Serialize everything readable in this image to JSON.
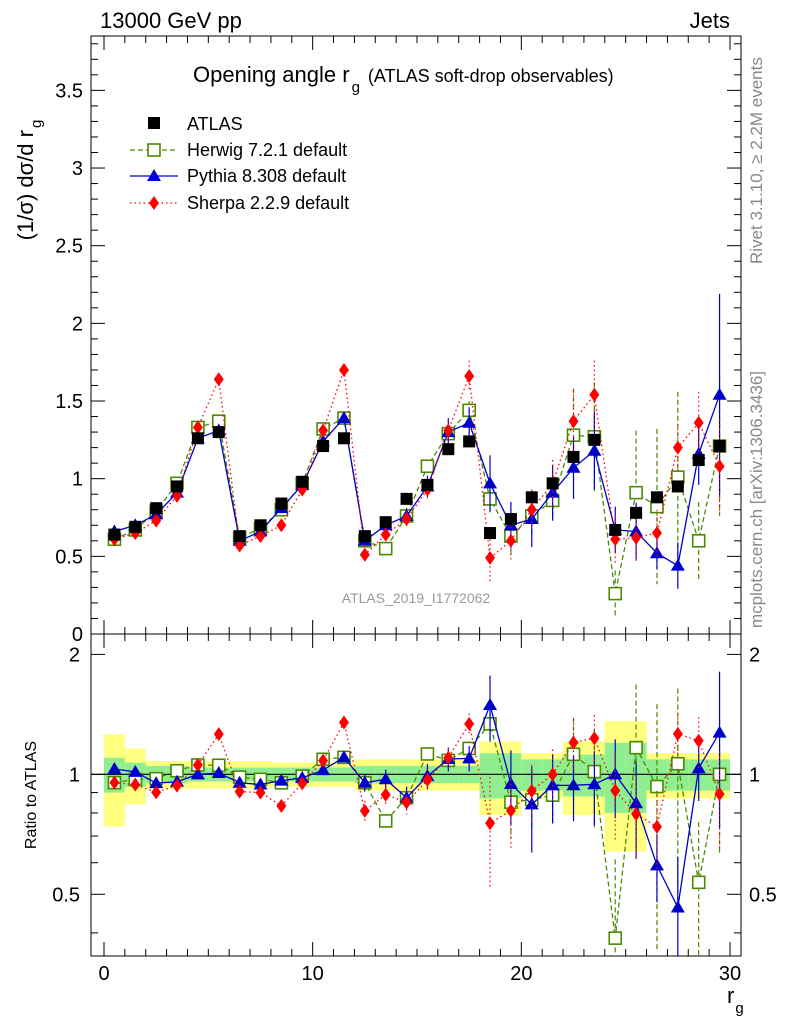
{
  "header": {
    "left": "13000 GeV pp",
    "right": "Jets"
  },
  "chart_data": {
    "type": "scatter",
    "title_main": "Opening angle r",
    "title_sub": "g",
    "title_suffix": "(ATLAS soft-drop observables)",
    "ylabel_main": "(1/σ) dσ/d r",
    "ylabel_sub": "g",
    "xlabel_main": "r",
    "xlabel_sub": "g",
    "ratio_ylabel": "Ratio to ATLAS",
    "analysis_label": "ATLAS_2019_I1772062",
    "side_label_top": "Rivet 3.1.10, ≥ 2.2M events",
    "side_label_bottom": "mcplots.cern.ch [arXiv:1306.3436]",
    "xlim": [
      0,
      30
    ],
    "ylim": [
      0,
      3.85
    ],
    "ratio_ylim": [
      0.35,
      2.25
    ],
    "x_ticks": [
      "0",
      "10",
      "20",
      "30"
    ],
    "y_ticks": [
      "0",
      "0.5",
      "1",
      "1.5",
      "2",
      "2.5",
      "3",
      "3.5"
    ],
    "ratio_y_ticks": [
      "0.5",
      "1",
      "2"
    ],
    "x": [
      0.5,
      1.5,
      2.5,
      3.5,
      4.5,
      5.5,
      6.5,
      7.5,
      8.5,
      9.5,
      10.5,
      11.5,
      12.5,
      13.5,
      14.5,
      15.5,
      16.5,
      17.5,
      18.5,
      19.5,
      20.5,
      21.5,
      22.5,
      23.5,
      24.5,
      25.5,
      26.5,
      27.5,
      28.5,
      29.5
    ],
    "series": [
      {
        "name": "ATLAS",
        "color": "#000000",
        "marker": "square-filled",
        "values": [
          0.64,
          0.69,
          0.81,
          0.95,
          1.26,
          1.3,
          0.63,
          0.7,
          0.84,
          0.98,
          1.21,
          1.26,
          0.63,
          0.72,
          0.87,
          0.96,
          1.19,
          1.24,
          0.65,
          0.74,
          0.88,
          0.97,
          1.14,
          1.25,
          0.67,
          0.78,
          0.88,
          0.95,
          1.12,
          1.21
        ]
      },
      {
        "name": "Herwig 7.2.1 default",
        "color": "#4a8a00",
        "marker": "square-open",
        "line": "dashed",
        "values": [
          0.61,
          0.67,
          0.79,
          0.97,
          1.33,
          1.37,
          0.62,
          0.68,
          0.8,
          0.97,
          1.32,
          1.39,
          0.6,
          0.55,
          0.76,
          1.08,
          1.29,
          1.44,
          0.87,
          0.63,
          0.76,
          0.86,
          1.28,
          1.27,
          0.26,
          0.91,
          0.82,
          1.01,
          0.6,
          1.21
        ],
        "err": [
          0.01,
          0.01,
          0.01,
          0.01,
          0.01,
          0.01,
          0.01,
          0.01,
          0.01,
          0.01,
          0.01,
          0.02,
          0.02,
          0.02,
          0.03,
          0.04,
          0.05,
          0.06,
          0.1,
          0.12,
          0.12,
          0.13,
          0.3,
          0.35,
          0.15,
          0.4,
          0.5,
          0.55,
          0.25,
          0.45
        ]
      },
      {
        "name": "Pythia 8.308 default",
        "color": "#0000cc",
        "marker": "triangle-filled",
        "line": "solid",
        "values": [
          0.66,
          0.7,
          0.77,
          0.91,
          1.26,
          1.31,
          0.6,
          0.66,
          0.81,
          0.96,
          1.24,
          1.39,
          0.6,
          0.7,
          0.76,
          0.95,
          1.3,
          1.36,
          0.97,
          0.7,
          0.74,
          0.91,
          1.07,
          1.18,
          0.67,
          0.66,
          0.52,
          0.44,
          1.16,
          1.54
        ],
        "err": [
          0.01,
          0.01,
          0.01,
          0.01,
          0.01,
          0.01,
          0.01,
          0.01,
          0.01,
          0.01,
          0.02,
          0.03,
          0.03,
          0.04,
          0.05,
          0.07,
          0.09,
          0.1,
          0.18,
          0.15,
          0.18,
          0.18,
          0.2,
          0.25,
          0.15,
          0.18,
          0.1,
          0.15,
          0.2,
          0.65
        ]
      },
      {
        "name": "Sherpa 2.2.9 default",
        "color": "#ff0000",
        "marker": "diamond-filled",
        "line": "dotted",
        "values": [
          0.61,
          0.65,
          0.73,
          0.89,
          1.33,
          1.64,
          0.57,
          0.63,
          0.7,
          0.93,
          1.31,
          1.7,
          0.51,
          0.64,
          0.74,
          0.93,
          1.31,
          1.66,
          0.49,
          0.6,
          0.8,
          0.97,
          1.37,
          1.54,
          0.61,
          0.62,
          0.65,
          1.2,
          1.36,
          1.08
        ],
        "err": [
          0.01,
          0.01,
          0.01,
          0.01,
          0.02,
          0.02,
          0.01,
          0.01,
          0.01,
          0.02,
          0.02,
          0.03,
          0.03,
          0.04,
          0.05,
          0.06,
          0.07,
          0.1,
          0.15,
          0.12,
          0.13,
          0.15,
          0.2,
          0.22,
          0.15,
          0.15,
          0.15,
          0.15,
          0.2,
          0.3
        ]
      }
    ],
    "ratio_band_yellow": [
      0.26,
      0.16,
      0.08,
      0.08,
      0.08,
      0.08,
      0.08,
      0.08,
      0.07,
      0.07,
      0.07,
      0.07,
      0.09,
      0.09,
      0.09,
      0.09,
      0.09,
      0.09,
      0.21,
      0.21,
      0.13,
      0.13,
      0.21,
      0.21,
      0.36,
      0.36,
      0.13,
      0.13,
      0.13,
      0.13
    ],
    "ratio_band_green": [
      0.1,
      0.07,
      0.05,
      0.05,
      0.04,
      0.04,
      0.04,
      0.04,
      0.04,
      0.04,
      0.04,
      0.04,
      0.05,
      0.05,
      0.05,
      0.05,
      0.05,
      0.05,
      0.13,
      0.13,
      0.09,
      0.09,
      0.12,
      0.12,
      0.2,
      0.2,
      0.09,
      0.09,
      0.09,
      0.09
    ]
  }
}
